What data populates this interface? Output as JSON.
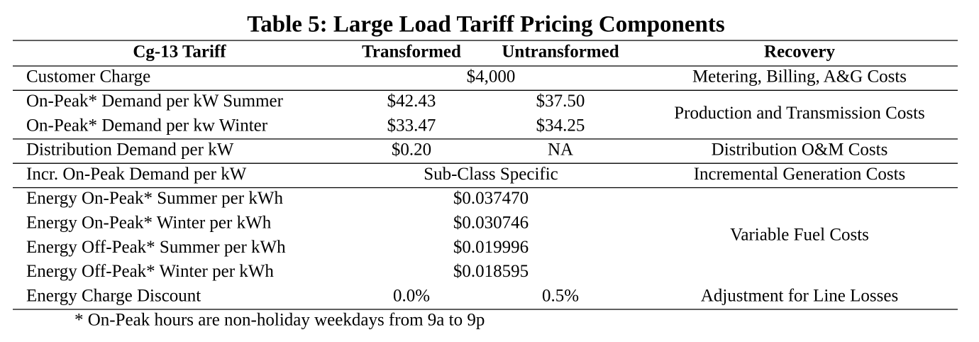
{
  "title": "Table 5: Large Load Tariff Pricing Components",
  "table": {
    "header": [
      "Cg-13 Tariff",
      "Transformed",
      "Untransformed",
      "Recovery"
    ],
    "groups": [
      {
        "rows": [
          {
            "label": "Customer Charge",
            "values": [
              "$4,000"
            ]
          }
        ],
        "recovery": "Metering, Billing, A&G Costs"
      },
      {
        "rows": [
          {
            "label": "On-Peak* Demand per kW Summer",
            "values": [
              "$42.43",
              "$37.50"
            ]
          },
          {
            "label": "On-Peak* Demand per kw Winter",
            "values": [
              "$33.47",
              "$34.25"
            ]
          }
        ],
        "recovery": "Production and Transmission Costs"
      },
      {
        "rows": [
          {
            "label": "Distribution Demand per kW",
            "values": [
              "$0.20",
              "NA"
            ]
          }
        ],
        "recovery": "Distribution O&M Costs"
      },
      {
        "rows": [
          {
            "label": "Incr. On-Peak Demand per kW",
            "values": [
              "Sub-Class Specific"
            ]
          }
        ],
        "recovery": "Incremental Generation Costs"
      },
      {
        "rows": [
          {
            "label": "Energy On-Peak* Summer per kWh",
            "values": [
              "$0.037470"
            ]
          },
          {
            "label": "Energy On-Peak* Winter per kWh",
            "values": [
              "$0.030746"
            ]
          },
          {
            "label": "Energy Off-Peak* Summer per kWh",
            "values": [
              "$0.019996"
            ]
          },
          {
            "label": "Energy Off-Peak* Winter per kWh",
            "values": [
              "$0.018595"
            ]
          }
        ],
        "recovery": "Variable Fuel Costs"
      },
      {
        "rows": [
          {
            "label": "Energy Charge Discount",
            "values": [
              "0.0%",
              "0.5%"
            ]
          }
        ],
        "recovery": "Adjustment for Line Losses"
      }
    ]
  },
  "footnote": "* On-Peak hours are non-holiday weekdays from 9a to 9p"
}
